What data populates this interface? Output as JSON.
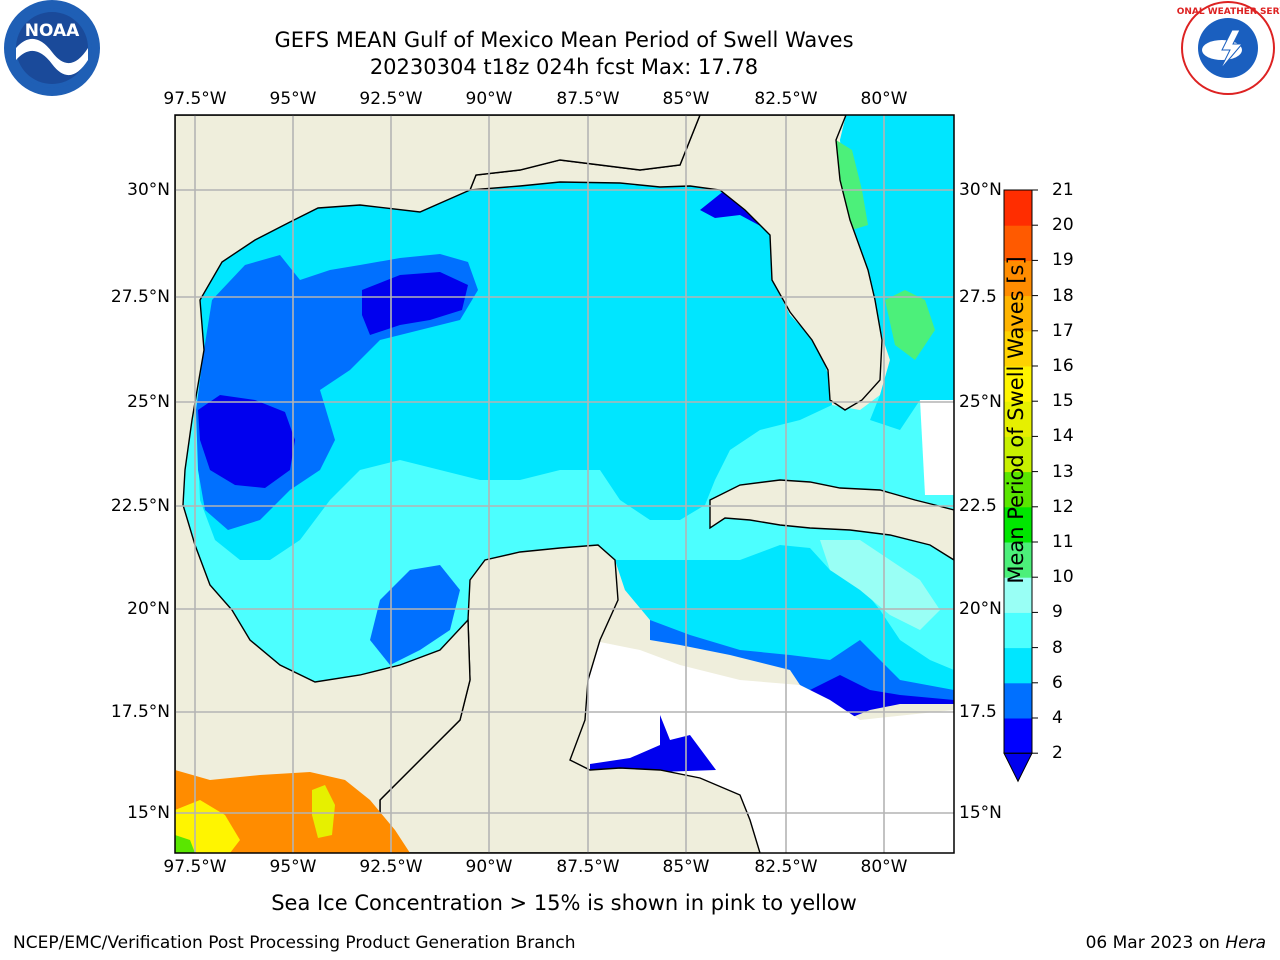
{
  "header": {
    "title_line1": "GEFS MEAN Gulf of Mexico Mean Period of Swell Waves",
    "title_line2": "20230304 t18z 024h fcst   Max: 17.78"
  },
  "map": {
    "lon_labels": [
      "97.5°W",
      "95°W",
      "92.5°W",
      "90°W",
      "87.5°W",
      "85°W",
      "82.5°W",
      "80°W"
    ],
    "lat_labels": [
      "30°N",
      "27.5°N",
      "25°N",
      "22.5°N",
      "20°N",
      "17.5°N",
      "15°N"
    ],
    "lat_labels_right": [
      "30°N",
      "27.5",
      "25°N",
      "22.5",
      "20°N",
      "17.5",
      "15°N"
    ],
    "colors": {
      "land": "#efeedc",
      "coast": "#000000",
      "grid": "#b4b4b4",
      "nodata": "#ffffff"
    }
  },
  "colorbar": {
    "label": "Mean Period of Swell Waves [s]",
    "ticks": [
      "2",
      "4",
      "6",
      "8",
      "9",
      "10",
      "11",
      "12",
      "13",
      "14",
      "15",
      "16",
      "17",
      "18",
      "19",
      "20",
      "21"
    ],
    "colors": [
      "#0000ff",
      "#0070ff",
      "#00e6ff",
      "#4cffff",
      "#99fff5",
      "#4cf07a",
      "#00e600",
      "#5ae600",
      "#c8f000",
      "#e6f000",
      "#fff500",
      "#ffd200",
      "#ffb400",
      "#ff8c00",
      "#ff5a00",
      "#ff2d00",
      "#ff0000"
    ],
    "extend_color": "#0000ee"
  },
  "caption": "Sea Ice Concentration > 15% is shown in pink to yellow",
  "footer": {
    "left": "NCEP/EMC/Verification Post Processing Product Generation Branch",
    "right_prefix": "06 Mar 2023 on ",
    "right_host": "Hera"
  },
  "logos": {
    "noaa_text": "NOAA",
    "nws_text": "NATIONAL WEATHER SERVICE"
  }
}
